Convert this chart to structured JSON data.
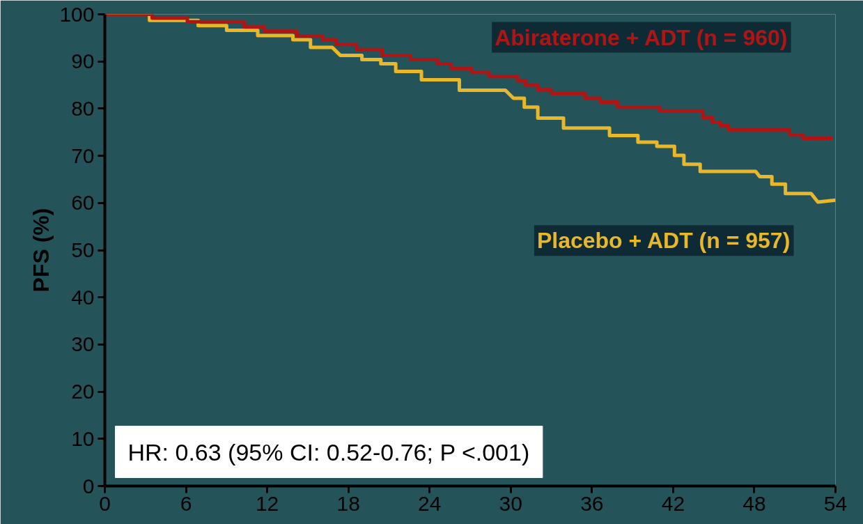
{
  "chart_data": {
    "type": "line",
    "ylabel": "PFS (%)",
    "xlim": [
      0,
      54
    ],
    "xticks": [
      0,
      6,
      12,
      18,
      24,
      30,
      36,
      42,
      48,
      54
    ],
    "ylim": [
      0,
      100
    ],
    "yticks": [
      0,
      10,
      20,
      30,
      40,
      50,
      60,
      70,
      80,
      90,
      100
    ],
    "grid": false,
    "legend": false,
    "marker": "none",
    "line_style": "solid",
    "annotations": [
      "HR: 0.63 (95% CI: 0.52-0.76; P <.001)"
    ],
    "series": [
      {
        "name": "Abiraterone + ADT (n = 960)",
        "color": "#b01515",
        "x": [
          0,
          3.5,
          3.5,
          6.1,
          6.1,
          10.3,
          10.3,
          11.8,
          11.8,
          14.2,
          14.2,
          16.1,
          16.1,
          17.1,
          17.1,
          18.6,
          18.6,
          20.5,
          20.5,
          22.6,
          22.6,
          24.6,
          24.6,
          25.6,
          25.6,
          27.1,
          27.1,
          28.4,
          28.4,
          30.5,
          30.5,
          31.1,
          31.1,
          32.0,
          32.0,
          33.0,
          33.0,
          35.5,
          35.5,
          36.6,
          36.6,
          37.9,
          37.9,
          41.0,
          41.0,
          44.2,
          44.2,
          44.9,
          44.9,
          45.5,
          45.5,
          46.1,
          46.1,
          50.6,
          50.6,
          51.6,
          51.6,
          53.8
        ],
        "values": [
          100,
          100,
          99.2,
          99.2,
          98.4,
          98.4,
          97.3,
          97.3,
          96.4,
          96.4,
          95.4,
          95.4,
          94.6,
          94.6,
          93.6,
          93.6,
          92.5,
          92.5,
          91.3,
          91.3,
          90.4,
          90.4,
          89.5,
          89.5,
          88.5,
          88.5,
          87.7,
          87.7,
          86.8,
          86.8,
          85.9,
          85.9,
          85.0,
          85.0,
          84.0,
          84.0,
          83.2,
          83.2,
          82.2,
          82.2,
          81.4,
          81.4,
          80.3,
          80.3,
          79.5,
          79.5,
          78.1,
          78.1,
          77.1,
          77.1,
          76.4,
          76.4,
          75.5,
          75.5,
          74.4,
          74.4,
          73.7,
          73.7
        ]
      },
      {
        "name": "Placebo + ADT (n = 957)",
        "color": "#e8b82a",
        "x": [
          0,
          3.3,
          3.3,
          6.9,
          6.9,
          9.0,
          9.0,
          11.3,
          11.3,
          13.9,
          13.9,
          15.2,
          15.2,
          16.8,
          17.4,
          19.0,
          19.0,
          20.4,
          20.4,
          21.5,
          21.5,
          23.4,
          23.4,
          26.2,
          26.2,
          29.6,
          30.2,
          31.0,
          31.0,
          32.0,
          32.0,
          33.9,
          33.9,
          37.3,
          37.3,
          39.4,
          39.4,
          40.8,
          40.8,
          42.1,
          42.1,
          42.8,
          42.8,
          44.0,
          44.0,
          48.1,
          48.4,
          49.3,
          49.3,
          50.3,
          50.3,
          52.2,
          52.7,
          54.0
        ],
        "values": [
          100,
          100,
          98.7,
          98.7,
          97.6,
          97.6,
          96.6,
          96.6,
          95.5,
          95.5,
          94.6,
          94.6,
          93.0,
          93.0,
          91.3,
          91.3,
          90.4,
          90.4,
          89.5,
          89.5,
          87.9,
          87.9,
          86.1,
          86.1,
          83.9,
          83.9,
          82.2,
          82.2,
          80.3,
          80.3,
          78.0,
          78.0,
          75.9,
          75.9,
          74.3,
          74.3,
          72.9,
          72.9,
          72.0,
          72.0,
          70.1,
          70.1,
          68.2,
          68.2,
          66.7,
          66.7,
          65.6,
          65.6,
          64.0,
          64.0,
          62.0,
          62.0,
          60.2,
          60.6
        ]
      }
    ]
  }
}
